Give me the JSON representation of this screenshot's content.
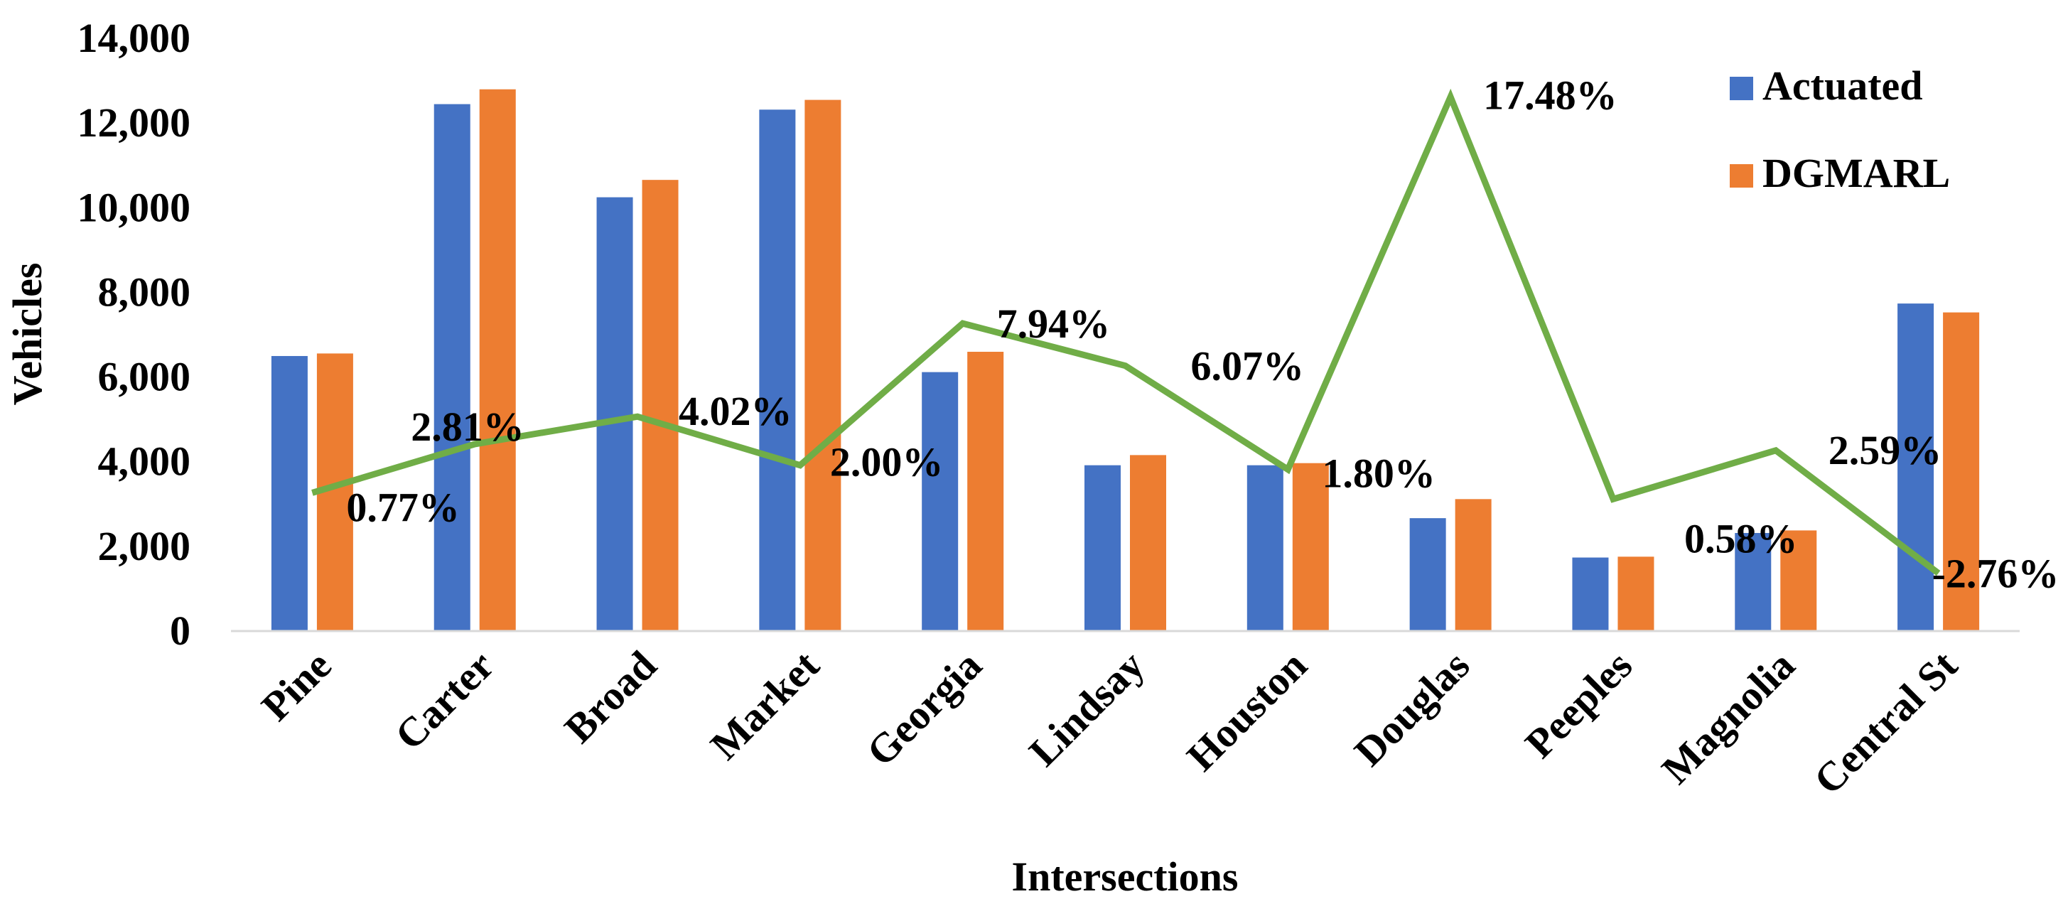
{
  "chart_data": {
    "type": "bar",
    "title": "",
    "xlabel": "Intersections",
    "ylabel": "Vehicles",
    "ylim": [
      0,
      14000
    ],
    "ytick_values": [
      0,
      2000,
      4000,
      6000,
      8000,
      10000,
      12000,
      14000
    ],
    "ytick_labels": [
      "0",
      "2,000",
      "4,000",
      "6,000",
      "8,000",
      "10,000",
      "12,000",
      "14,000"
    ],
    "grid": false,
    "legend_position": "top-right",
    "categories": [
      "Pine",
      "Carter",
      "Broad",
      "Market",
      "Georgia",
      "Lindsay",
      "Houston",
      "Douglas",
      "Peeples",
      "Magnolia",
      "Central St"
    ],
    "series": [
      {
        "name": "Actuated",
        "color": "#4472C4",
        "values": [
          6480,
          12430,
          10230,
          12300,
          6100,
          3900,
          3900,
          2650,
          1720,
          2300,
          7720
        ]
      },
      {
        "name": "DGMARL",
        "color": "#ED7D31",
        "values": [
          6540,
          12780,
          10640,
          12530,
          6580,
          4140,
          3950,
          3100,
          1740,
          2360,
          7510
        ]
      }
    ],
    "improvement_line": {
      "color": "#70AD47",
      "y_positions": [
        3250,
        4400,
        5050,
        3900,
        7250,
        6250,
        3800,
        12600,
        3100,
        4250,
        1350
      ],
      "labels": [
        "0.77%",
        "2.81%",
        "4.02%",
        "2.00%",
        "7.94%",
        "6.07%",
        "1.80%",
        "17.48%",
        "0.58%",
        "2.59%",
        "-2.76%"
      ]
    }
  }
}
